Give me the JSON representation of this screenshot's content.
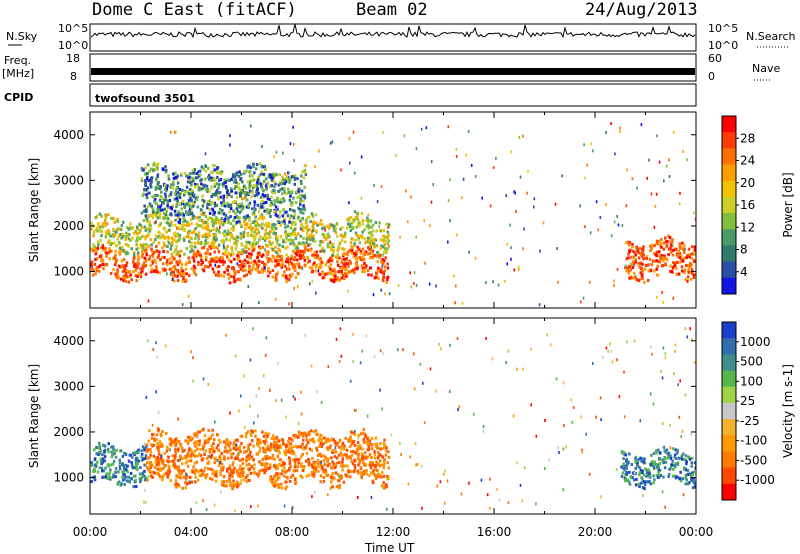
{
  "header": {
    "station": "Dome C East (fitACF)",
    "beam": "Beam 02",
    "date": "24/Aug/2013"
  },
  "strips": {
    "nsky_label": "N.Sky",
    "nsky_ticks": [
      "10^5",
      "10^0"
    ],
    "nsearch_label": "N.Search",
    "nsearch_ticks": [
      "10^5",
      "10^0"
    ],
    "freq_label": "Freq.",
    "freq_unit": "[MHz]",
    "freq_ticks": [
      "18",
      "8"
    ],
    "nave_label": "Nave",
    "nave_ticks": [
      "60",
      "0"
    ],
    "cpid_label": "CPID",
    "cpid_value": "twofsound 3501"
  },
  "chart_data": [
    {
      "type": "heatmap",
      "quantity": "Power",
      "ylabel": "Slant Range [km]",
      "xlabel": "Time UT",
      "xlim": [
        0,
        24
      ],
      "ylim": [
        200,
        4500
      ],
      "y_ticks": [
        "1000",
        "2000",
        "3000",
        "4000"
      ],
      "x_ticks": [
        "00:00",
        "04:00",
        "08:00",
        "12:00",
        "16:00",
        "20:00",
        "00:00"
      ],
      "colorbar": {
        "label": "Power [dB]",
        "ticks": [
          "28",
          "24",
          "20",
          "16",
          "12",
          "8",
          "4"
        ],
        "colors": [
          "#ff0000",
          "#ff3b00",
          "#ff7000",
          "#ff9e00",
          "#f2c200",
          "#c9cf28",
          "#7fbf3a",
          "#4a9a6a",
          "#2f7a6a",
          "#2a4fa8",
          "#1414e6"
        ]
      },
      "bands": [
        {
          "t0": 0.0,
          "t1": 11.8,
          "r0": 900,
          "r1": 1500,
          "value": "high"
        },
        {
          "t0": 0.0,
          "t1": 11.8,
          "r0": 1500,
          "r1": 2200,
          "value": "mid"
        },
        {
          "t0": 2.0,
          "t1": 8.5,
          "r0": 2200,
          "r1": 3300,
          "value": "low"
        },
        {
          "t0": 21.2,
          "t1": 24.0,
          "r0": 900,
          "r1": 1700,
          "value": "high"
        }
      ]
    },
    {
      "type": "heatmap",
      "quantity": "Velocity",
      "ylabel": "Slant Range [km]",
      "xlabel": "Time UT",
      "xlim": [
        0,
        24
      ],
      "ylim": [
        200,
        4500
      ],
      "y_ticks": [
        "1000",
        "2000",
        "3000",
        "4000"
      ],
      "x_ticks": [
        "00:00",
        "04:00",
        "08:00",
        "12:00",
        "16:00",
        "20:00",
        "00:00"
      ],
      "colorbar": {
        "label": "Velocity [m s-1]",
        "ticks": [
          "1000",
          "500",
          "100",
          "25",
          "-25",
          "-100",
          "-500",
          "-1000"
        ],
        "colors": [
          "#1a3fcf",
          "#2f6fb0",
          "#3f8e8e",
          "#57b84a",
          "#9fd34a",
          "#c8c8c8",
          "#f2b230",
          "#ff9a00",
          "#ff7a00",
          "#ff4a00",
          "#ff0000"
        ]
      },
      "bands": [
        {
          "t0": 0.0,
          "t1": 2.2,
          "r0": 900,
          "r1": 1700,
          "value": "positive"
        },
        {
          "t0": 2.2,
          "t1": 11.8,
          "r0": 900,
          "r1": 2000,
          "value": "negative"
        },
        {
          "t0": 21.0,
          "t1": 24.0,
          "r0": 900,
          "r1": 1600,
          "value": "positive"
        }
      ]
    }
  ]
}
